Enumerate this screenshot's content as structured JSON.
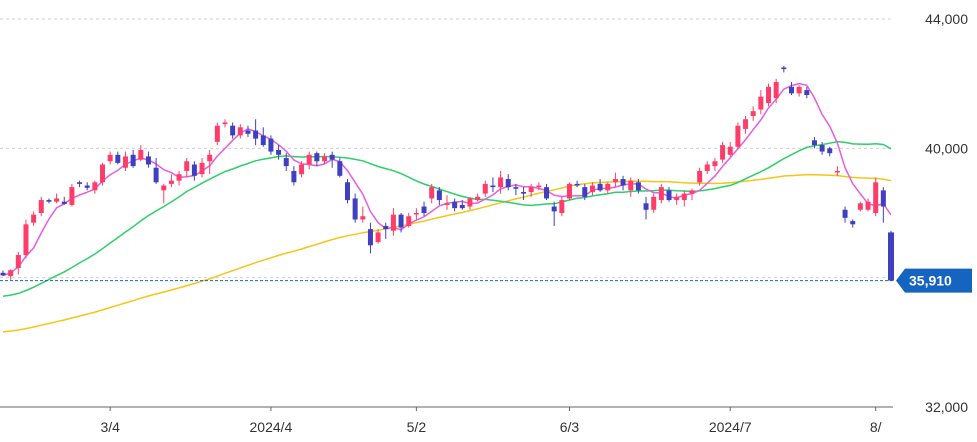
{
  "chart_data": {
    "type": "candlestick",
    "y_ticks": [
      {
        "value": 44000,
        "label": "44,000"
      },
      {
        "value": 40000,
        "label": "40,000"
      },
      {
        "value": 36000,
        "label": ""
      },
      {
        "value": 32000,
        "label": "32,000"
      }
    ],
    "ylim": [
      32000,
      44000
    ],
    "x_ticks": [
      {
        "index": 14,
        "label": "3/4"
      },
      {
        "index": 35,
        "label": "2024/4"
      },
      {
        "index": 54,
        "label": "5/2"
      },
      {
        "index": 74,
        "label": "6/3"
      },
      {
        "index": 95,
        "label": "2024/7"
      },
      {
        "index": 114,
        "label": "8/"
      }
    ],
    "last_price": {
      "value": 35910,
      "label": "35,910"
    },
    "colors": {
      "up": "#ff3d6a",
      "down": "#3f3fbf",
      "ma_short": "#e55de0",
      "ma_mid": "#2ecf6a",
      "ma_long": "#f5c518",
      "price_tag": "#1565c0",
      "grid": "#cfcfcf"
    },
    "candles": [
      [
        36150,
        36220,
        36050,
        36070
      ],
      [
        36050,
        36260,
        35930,
        36230
      ],
      [
        36300,
        36800,
        36100,
        36700
      ],
      [
        36700,
        37800,
        36600,
        37650
      ],
      [
        37700,
        38050,
        37600,
        37950
      ],
      [
        38000,
        38500,
        37900,
        38400
      ],
      [
        38400,
        38450,
        38300,
        38350
      ],
      [
        38350,
        38600,
        38300,
        38450
      ],
      [
        38350,
        38500,
        38250,
        38280
      ],
      [
        38250,
        38900,
        38200,
        38800
      ],
      [
        38950,
        39000,
        38800,
        38900
      ],
      [
        38850,
        38950,
        38700,
        38780
      ],
      [
        38700,
        39000,
        38600,
        38950
      ],
      [
        38950,
        39550,
        38850,
        39500
      ],
      [
        39600,
        39900,
        39500,
        39800
      ],
      [
        39800,
        39900,
        39500,
        39550
      ],
      [
        39400,
        39900,
        39300,
        39750
      ],
      [
        39800,
        39950,
        39400,
        39450
      ],
      [
        39650,
        40100,
        39600,
        39950
      ],
      [
        39750,
        39900,
        39400,
        39500
      ],
      [
        39400,
        39700,
        38900,
        38950
      ],
      [
        38700,
        38900,
        38300,
        38850
      ],
      [
        38900,
        39200,
        38800,
        39000
      ],
      [
        39000,
        39300,
        38850,
        39200
      ],
      [
        39300,
        39700,
        39100,
        39600
      ],
      [
        39500,
        39600,
        39000,
        39150
      ],
      [
        39200,
        39700,
        39100,
        39550
      ],
      [
        39600,
        39950,
        39200,
        39800
      ],
      [
        40200,
        40800,
        40100,
        40700
      ],
      [
        40750,
        40900,
        40650,
        40800
      ],
      [
        40700,
        40800,
        40300,
        40400
      ],
      [
        40400,
        40750,
        40300,
        40650
      ],
      [
        40550,
        40700,
        40350,
        40450
      ],
      [
        40550,
        40900,
        40100,
        40300
      ],
      [
        40400,
        40650,
        40050,
        40100
      ],
      [
        40300,
        40400,
        39800,
        39900
      ],
      [
        39950,
        40100,
        39650,
        39800
      ],
      [
        39700,
        39850,
        39300,
        39450
      ],
      [
        39300,
        39450,
        38850,
        38950
      ],
      [
        39200,
        39600,
        39100,
        39500
      ],
      [
        39500,
        39900,
        39350,
        39800
      ],
      [
        39850,
        39900,
        39450,
        39600
      ],
      [
        39600,
        39850,
        39500,
        39750
      ],
      [
        39800,
        39900,
        39400,
        39650
      ],
      [
        39600,
        39700,
        39100,
        39150
      ],
      [
        38950,
        39050,
        38300,
        38400
      ],
      [
        38450,
        38600,
        37700,
        37800
      ],
      [
        37800,
        38200,
        37700,
        37900
      ],
      [
        37500,
        37700,
        36750,
        37000
      ],
      [
        37100,
        37500,
        37050,
        37400
      ],
      [
        37600,
        37700,
        37200,
        37500
      ],
      [
        37450,
        38150,
        37300,
        37950
      ],
      [
        37950,
        38000,
        37400,
        37550
      ],
      [
        37600,
        38000,
        37550,
        37900
      ],
      [
        38000,
        38150,
        37800,
        38000
      ],
      [
        38200,
        38350,
        37900,
        38000
      ],
      [
        38450,
        38900,
        38300,
        38800
      ],
      [
        38700,
        38800,
        38250,
        38400
      ],
      [
        38250,
        38550,
        38100,
        38300
      ],
      [
        38350,
        38450,
        38050,
        38150
      ],
      [
        38250,
        38400,
        38100,
        38150
      ],
      [
        38200,
        38500,
        38100,
        38450
      ],
      [
        38400,
        38600,
        38350,
        38500
      ],
      [
        38600,
        39000,
        38500,
        38900
      ],
      [
        38850,
        39100,
        38650,
        38800
      ],
      [
        38800,
        39300,
        38600,
        39100
      ],
      [
        39050,
        39200,
        38700,
        38800
      ],
      [
        38800,
        38900,
        38550,
        38750
      ],
      [
        38650,
        38800,
        38400,
        38600
      ],
      [
        38650,
        38900,
        38500,
        38800
      ],
      [
        38800,
        38950,
        38700,
        38850
      ],
      [
        38800,
        38900,
        38400,
        38450
      ],
      [
        38200,
        38350,
        37600,
        38050
      ],
      [
        38000,
        38500,
        37900,
        38400
      ],
      [
        38450,
        38950,
        38400,
        38900
      ],
      [
        38900,
        39000,
        38800,
        38850
      ],
      [
        38800,
        38900,
        38400,
        38500
      ],
      [
        38650,
        38950,
        38550,
        38850
      ],
      [
        38900,
        39050,
        38650,
        38700
      ],
      [
        38700,
        38950,
        38600,
        38900
      ],
      [
        38950,
        39250,
        38800,
        39050
      ],
      [
        39050,
        39150,
        38700,
        38850
      ],
      [
        38700,
        39100,
        38500,
        39000
      ],
      [
        38950,
        39050,
        38600,
        38700
      ],
      [
        38300,
        38500,
        37800,
        38100
      ],
      [
        38100,
        38600,
        38000,
        38500
      ],
      [
        38400,
        38900,
        38300,
        38800
      ],
      [
        38700,
        38800,
        38350,
        38400
      ],
      [
        38400,
        38600,
        38250,
        38500
      ],
      [
        38400,
        38700,
        38200,
        38600
      ],
      [
        38600,
        38750,
        38400,
        38700
      ],
      [
        38950,
        39400,
        38850,
        39300
      ],
      [
        39300,
        39600,
        39200,
        39500
      ],
      [
        39450,
        39700,
        39300,
        39600
      ],
      [
        39650,
        40200,
        39550,
        40100
      ],
      [
        39800,
        40200,
        39750,
        40050
      ],
      [
        40050,
        40800,
        40000,
        40700
      ],
      [
        40600,
        41000,
        40450,
        40900
      ],
      [
        41000,
        41300,
        40850,
        41150
      ],
      [
        41200,
        41800,
        41050,
        41600
      ],
      [
        41400,
        42000,
        41300,
        41900
      ],
      [
        41550,
        42150,
        41400,
        42050
      ],
      [
        42500,
        42550,
        42350,
        42450
      ],
      [
        41900,
        42050,
        41650,
        41700
      ],
      [
        41700,
        41950,
        41600,
        41900
      ],
      [
        41800,
        41900,
        41550,
        41650
      ],
      [
        40250,
        40350,
        40000,
        40100
      ],
      [
        40100,
        40200,
        39800,
        39900
      ],
      [
        40000,
        40050,
        39750,
        39850
      ],
      [
        39300,
        39450,
        39150,
        39300
      ],
      [
        38100,
        38200,
        37700,
        37850
      ],
      [
        37750,
        37800,
        37550,
        37650
      ],
      [
        38100,
        38350,
        38050,
        38300
      ],
      [
        38100,
        38450,
        38050,
        38350
      ],
      [
        38000,
        39100,
        37900,
        38950
      ],
      [
        38700,
        38800,
        37700,
        38200
      ],
      [
        37400,
        37450,
        35900,
        35910
      ]
    ]
  }
}
